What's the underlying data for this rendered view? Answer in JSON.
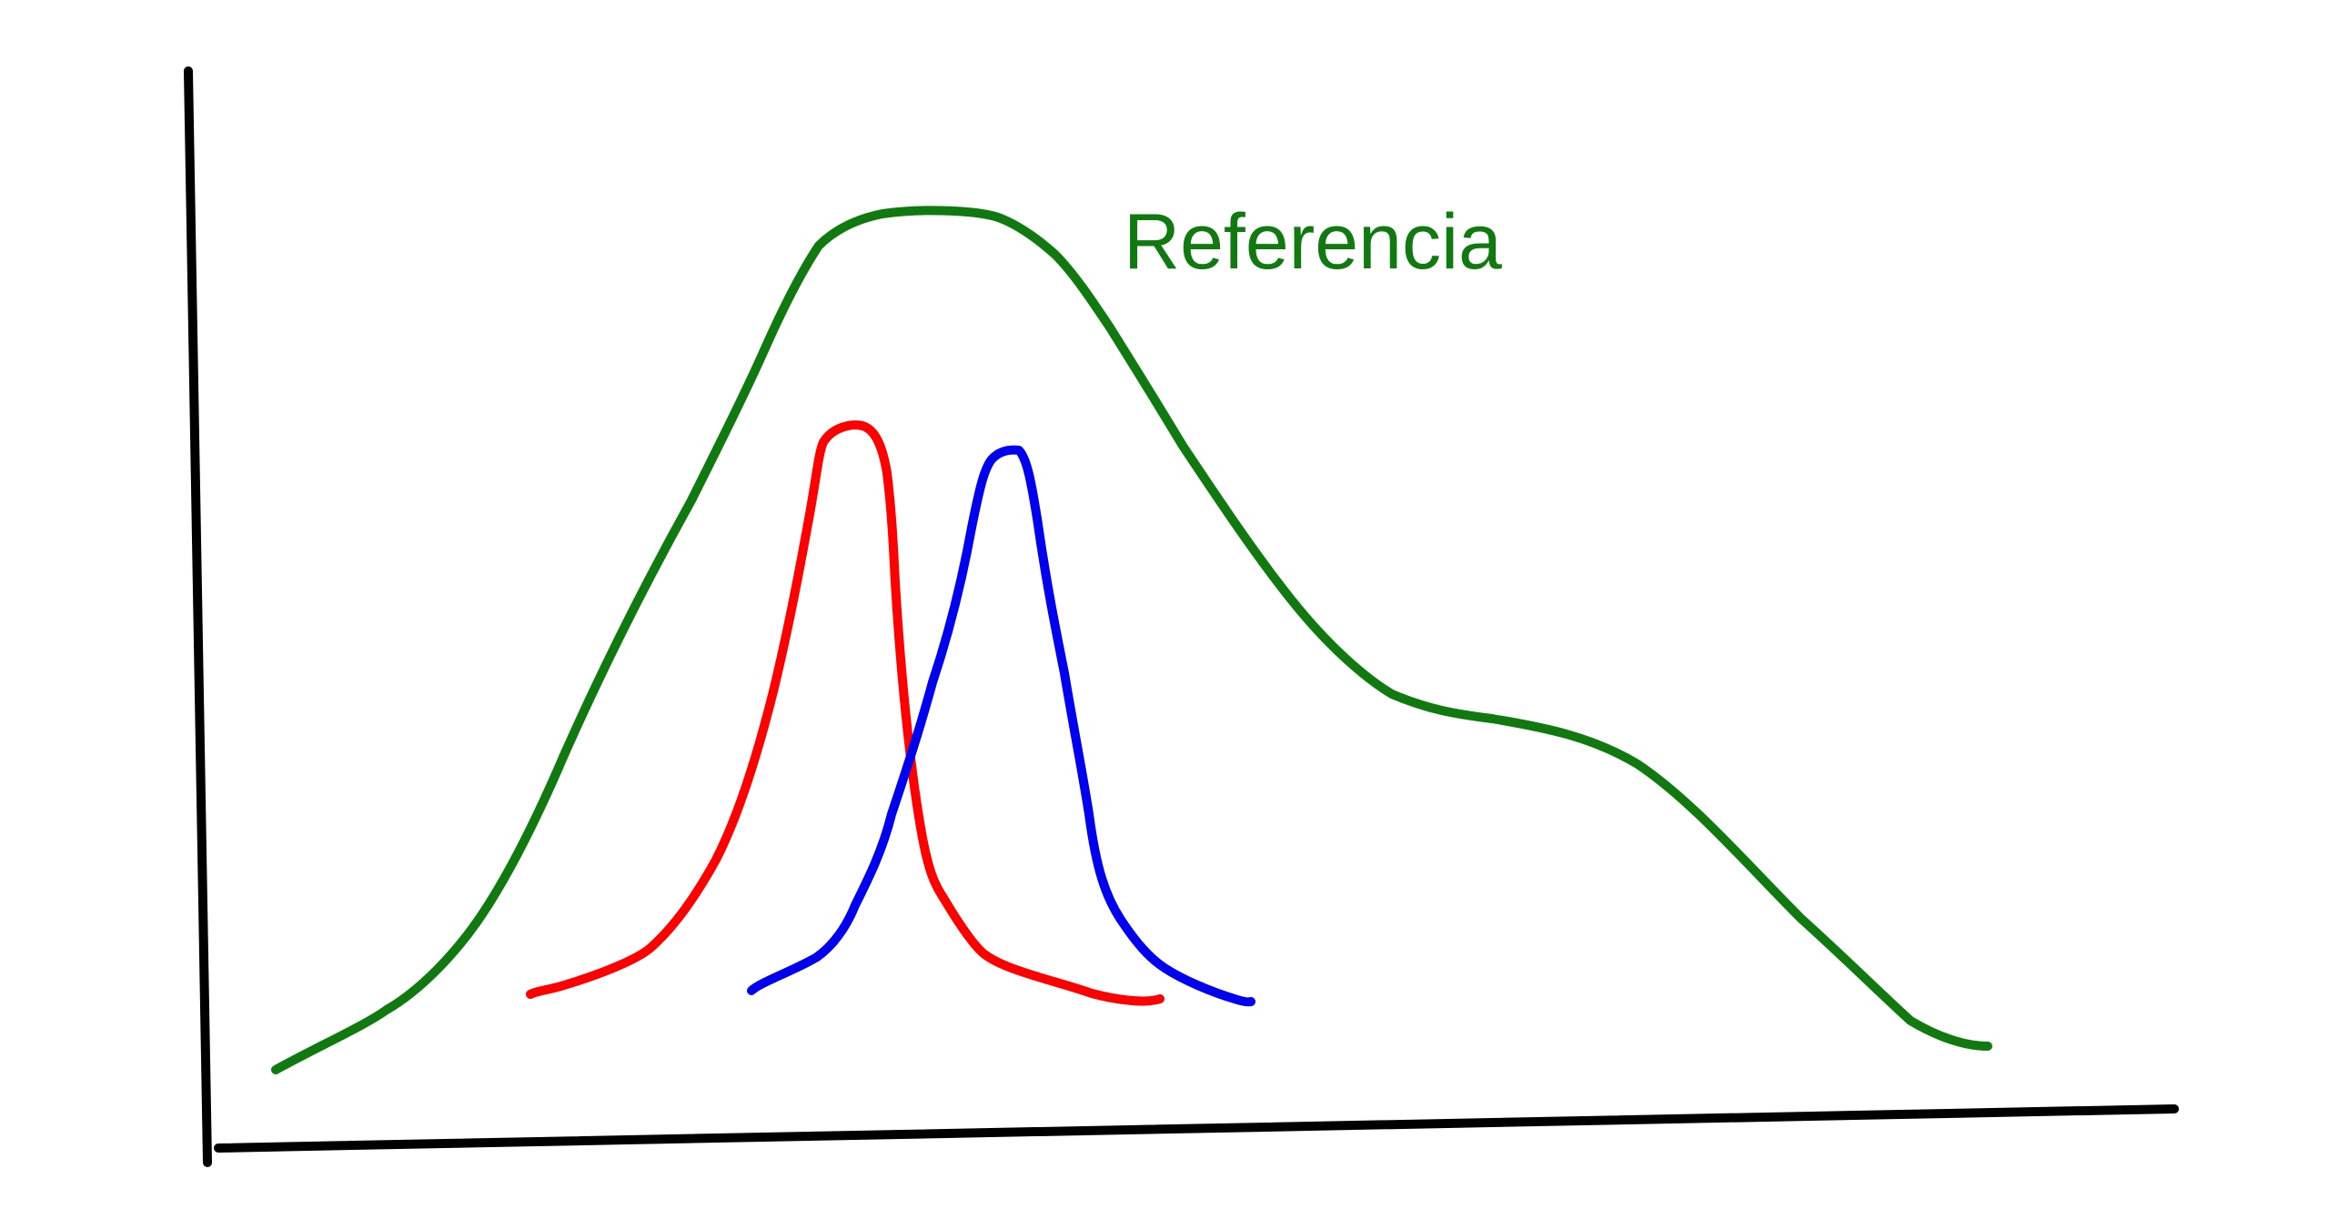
{
  "annotations": {
    "reference_label": "Referencia"
  },
  "colors": {
    "axes": "#000000",
    "reference": "#107a10",
    "red_curve": "#ff0000",
    "blue_curve": "#0000ee"
  }
}
